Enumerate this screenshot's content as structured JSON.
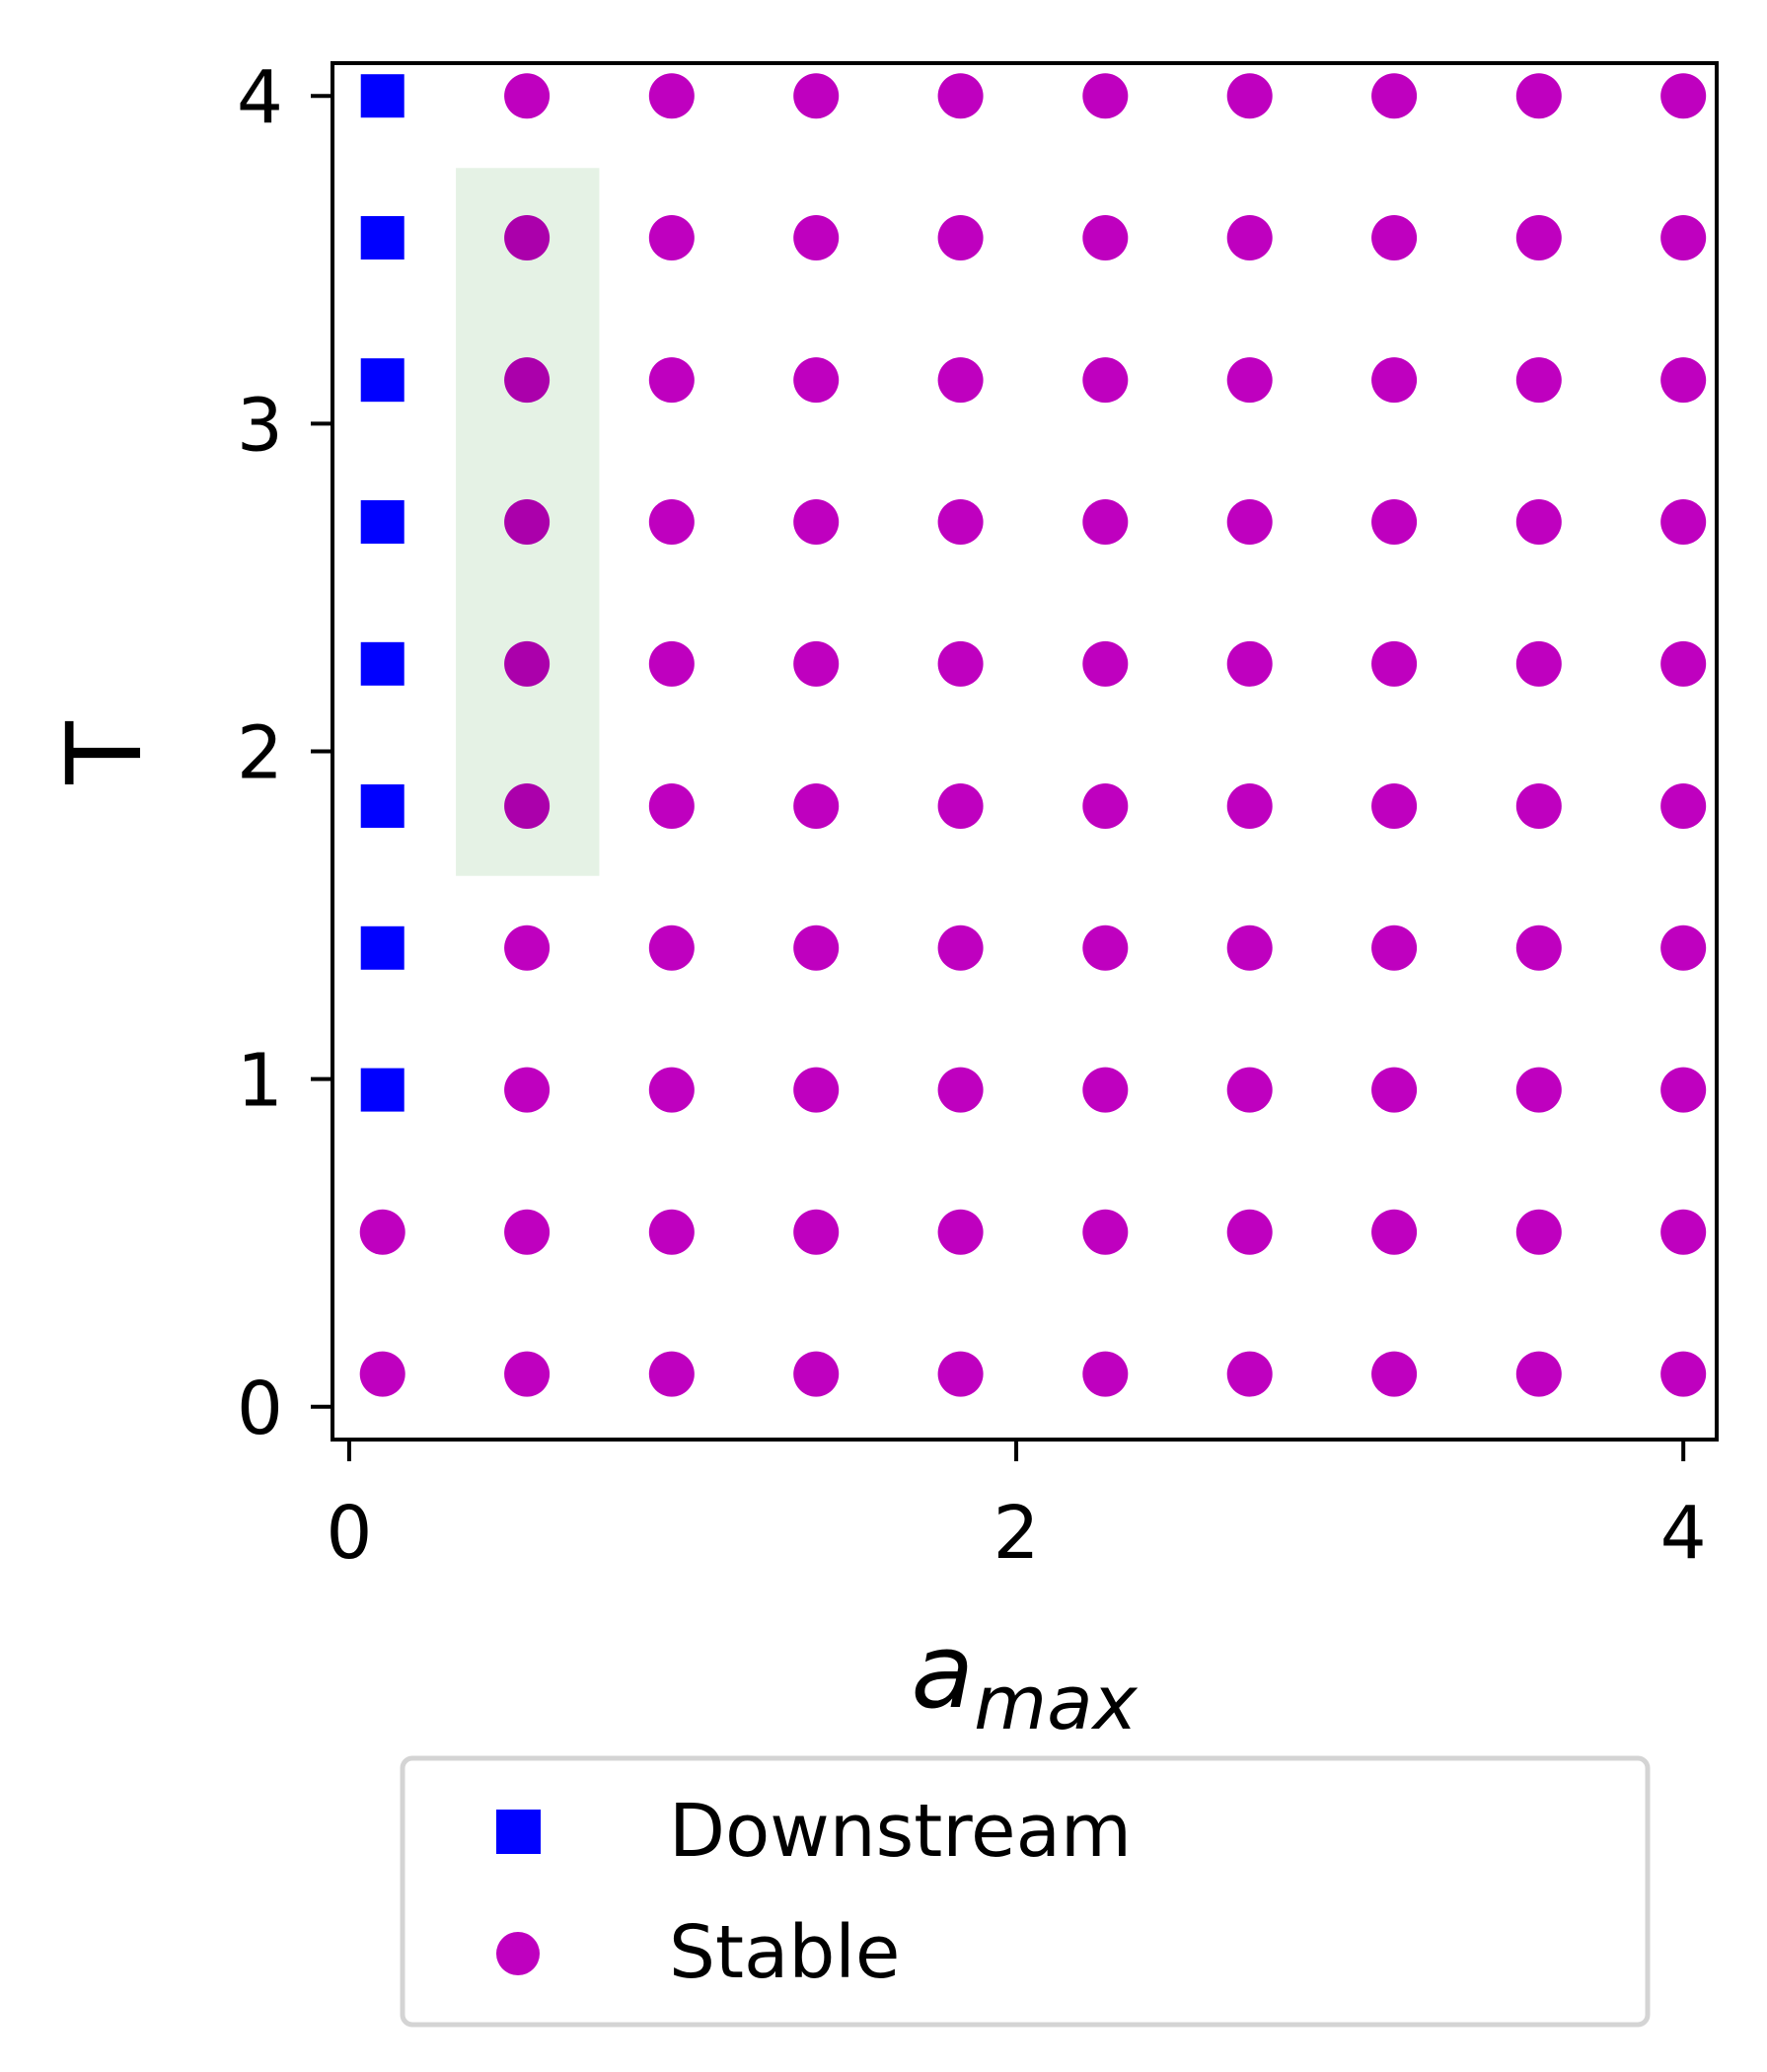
{
  "chart_data": {
    "type": "scatter",
    "xlabel": "a",
    "xlabel_subscript": "max",
    "ylabel": "T",
    "xlim": [
      -0.05,
      4.1
    ],
    "ylim": [
      -0.1,
      4.1
    ],
    "xticks": [
      0,
      2,
      4
    ],
    "yticks": [
      0,
      1,
      2,
      3,
      4
    ],
    "grid": false,
    "legend_placement": "below plot",
    "x_values": [
      0.1,
      0.533,
      0.967,
      1.4,
      1.833,
      2.267,
      2.7,
      3.133,
      3.567,
      4.0
    ],
    "y_values": [
      0.1,
      0.533,
      0.967,
      1.4,
      1.833,
      2.267,
      2.7,
      3.133,
      3.567,
      4.0
    ],
    "series": [
      {
        "name": "Downstream",
        "marker": "square",
        "color": "#0000ff",
        "points": [
          [
            0.1,
            0.967
          ],
          [
            0.1,
            1.4
          ],
          [
            0.1,
            1.833
          ],
          [
            0.1,
            2.267
          ],
          [
            0.1,
            2.7
          ],
          [
            0.1,
            3.133
          ],
          [
            0.1,
            3.567
          ],
          [
            0.1,
            4.0
          ]
        ]
      },
      {
        "name": "Stable",
        "marker": "circle",
        "color": "#bf00bf",
        "points": "all grid points except Downstream"
      }
    ],
    "highlight_region": {
      "x_range": [
        0.32,
        0.75
      ],
      "y_range": [
        1.62,
        3.78
      ],
      "color": "#e5f2e5"
    }
  }
}
